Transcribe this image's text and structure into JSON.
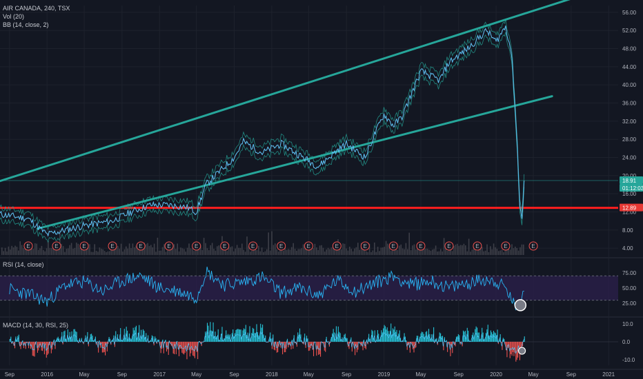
{
  "header": {
    "symbol_line": "AIR CANADA, 240, TSX",
    "vol_line": "Vol (20)",
    "bb_line": "BB (14, close, 2)"
  },
  "rsi_pane": {
    "title": "RSI (14, close)"
  },
  "macd_pane": {
    "title": "MACD (14, 30, RSI, 25)"
  },
  "price_badges": {
    "current": "18.91",
    "countdown": "01:12:03",
    "level": "12.89"
  },
  "colors": {
    "background": "#131722",
    "price_line": "#4fc3f7",
    "trendline": "#26a69a",
    "support": "#ff1e1e",
    "rsi_line": "#29b6f6",
    "rsi_band": "#2a1f4a",
    "macd_up": "#26c6da",
    "macd_down": "#ef5350",
    "volume": "#3d3f48",
    "current_badge": "#26a69a",
    "level_badge": "#e53935"
  },
  "chart_data": [
    {
      "type": "line",
      "pane": "price",
      "x_ticks": [
        "Sep",
        "2016",
        "May",
        "Sep",
        "2017",
        "May",
        "Sep",
        "2018",
        "May",
        "Sep",
        "2019",
        "May",
        "Sep",
        "2020",
        "May",
        "Sep",
        "2021"
      ],
      "y_ticks": [
        "56.00",
        "52.00",
        "48.00",
        "44.00",
        "40.00",
        "36.00",
        "32.00",
        "28.00",
        "24.00",
        "20.00",
        "16.00",
        "12.00",
        "8.00",
        "4.00"
      ],
      "ylim": [
        2.5,
        57.5
      ],
      "x_range": [
        "2015-09",
        "2021-02"
      ],
      "series": [
        {
          "x": [
            "2015-08",
            "2015-11",
            "2016-01",
            "2016-03",
            "2016-05",
            "2016-08",
            "2016-10",
            "2016-12",
            "2017-02",
            "2017-04",
            "2017-05",
            "2017-06",
            "2017-08",
            "2017-09",
            "2017-10",
            "2017-12",
            "2018-02",
            "2018-04",
            "2018-06",
            "2018-08",
            "2018-09",
            "2018-11",
            "2018-12",
            "2019-01",
            "2019-02",
            "2019-03",
            "2019-05",
            "2019-07",
            "2019-08",
            "2019-10",
            "2019-12",
            "2020-01",
            "2020-02",
            "2020-02-20",
            "2020-03-01",
            "2020-03-10",
            "2020-03-18",
            "2020-03-25",
            "2020-04-01"
          ],
          "values": [
            11.5,
            10.5,
            7.0,
            8.0,
            9.0,
            10.0,
            12.0,
            13.5,
            13.5,
            13.0,
            12.0,
            18.0,
            22.0,
            24.0,
            27.5,
            25.0,
            27.0,
            24.5,
            22.0,
            25.5,
            27.0,
            24.0,
            29.0,
            33.5,
            31.0,
            33.0,
            43.0,
            41.0,
            45.0,
            48.0,
            52.0,
            49.5,
            53.0,
            47.0,
            37.0,
            26.0,
            14.0,
            10.0,
            18.9
          ]
        }
      ],
      "hlines": [
        18.91,
        12.89
      ],
      "trendlines": [
        {
          "name": "upper",
          "points": [
            [
              "2015-08",
              18.8
            ],
            [
              "2020-09",
              59.0
            ]
          ]
        },
        {
          "name": "lower",
          "points": [
            [
              "2015-12",
              8.3
            ],
            [
              "2020-07",
              37.5
            ]
          ]
        }
      ],
      "earnings_marker": "E",
      "earnings_dates": [
        "2015-11",
        "2016-02",
        "2016-05",
        "2016-08",
        "2016-11",
        "2017-02",
        "2017-05",
        "2017-08",
        "2017-11",
        "2018-02",
        "2018-05",
        "2018-08",
        "2018-11",
        "2019-02",
        "2019-05",
        "2019-08",
        "2019-11",
        "2020-02",
        "2020-05"
      ],
      "grid": true
    },
    {
      "type": "line",
      "pane": "rsi",
      "y_ticks": [
        "75.00",
        "50.00",
        "25.00"
      ],
      "ylim": [
        5,
        95
      ],
      "band": [
        30,
        70
      ],
      "x": [
        "2015-09",
        "2015-11",
        "2016-01",
        "2016-03",
        "2016-05",
        "2016-07",
        "2016-09",
        "2016-11",
        "2017-01",
        "2017-03",
        "2017-05",
        "2017-06",
        "2017-08",
        "2017-10",
        "2017-12",
        "2018-02",
        "2018-04",
        "2018-06",
        "2018-08",
        "2018-10",
        "2018-12",
        "2019-02",
        "2019-04",
        "2019-06",
        "2019-08",
        "2019-10",
        "2019-12",
        "2020-01",
        "2020-02",
        "2020-03",
        "2020-03-20",
        "2020-04-01"
      ],
      "values": [
        48,
        40,
        28,
        55,
        60,
        45,
        62,
        70,
        50,
        45,
        35,
        78,
        55,
        60,
        68,
        42,
        50,
        38,
        62,
        45,
        58,
        70,
        55,
        62,
        50,
        58,
        65,
        60,
        50,
        20,
        28,
        45
      ],
      "grid": true
    },
    {
      "type": "bar",
      "pane": "macd",
      "y_ticks": [
        "10.0",
        "0.0",
        "-10.0"
      ],
      "ylim": [
        -13,
        13
      ],
      "x": [
        "2015-09",
        "2015-11",
        "2016-01",
        "2016-03",
        "2016-05",
        "2016-07",
        "2016-09",
        "2016-11",
        "2017-01",
        "2017-03",
        "2017-05",
        "2017-06",
        "2017-08",
        "2017-10",
        "2017-12",
        "2018-02",
        "2018-04",
        "2018-06",
        "2018-08",
        "2018-10",
        "2018-12",
        "2019-02",
        "2019-04",
        "2019-06",
        "2019-08",
        "2019-10",
        "2019-12",
        "2020-01",
        "2020-02",
        "2020-03",
        "2020-03-20",
        "2020-04-01"
      ],
      "values": [
        2,
        -3,
        -6,
        4,
        3,
        -4,
        5,
        6,
        -3,
        -4,
        -7,
        8,
        4,
        5,
        6,
        -5,
        3,
        -6,
        5,
        -4,
        4,
        7,
        -3,
        5,
        -4,
        4,
        6,
        3,
        -4,
        -9,
        -6,
        3
      ],
      "grid": true
    }
  ]
}
